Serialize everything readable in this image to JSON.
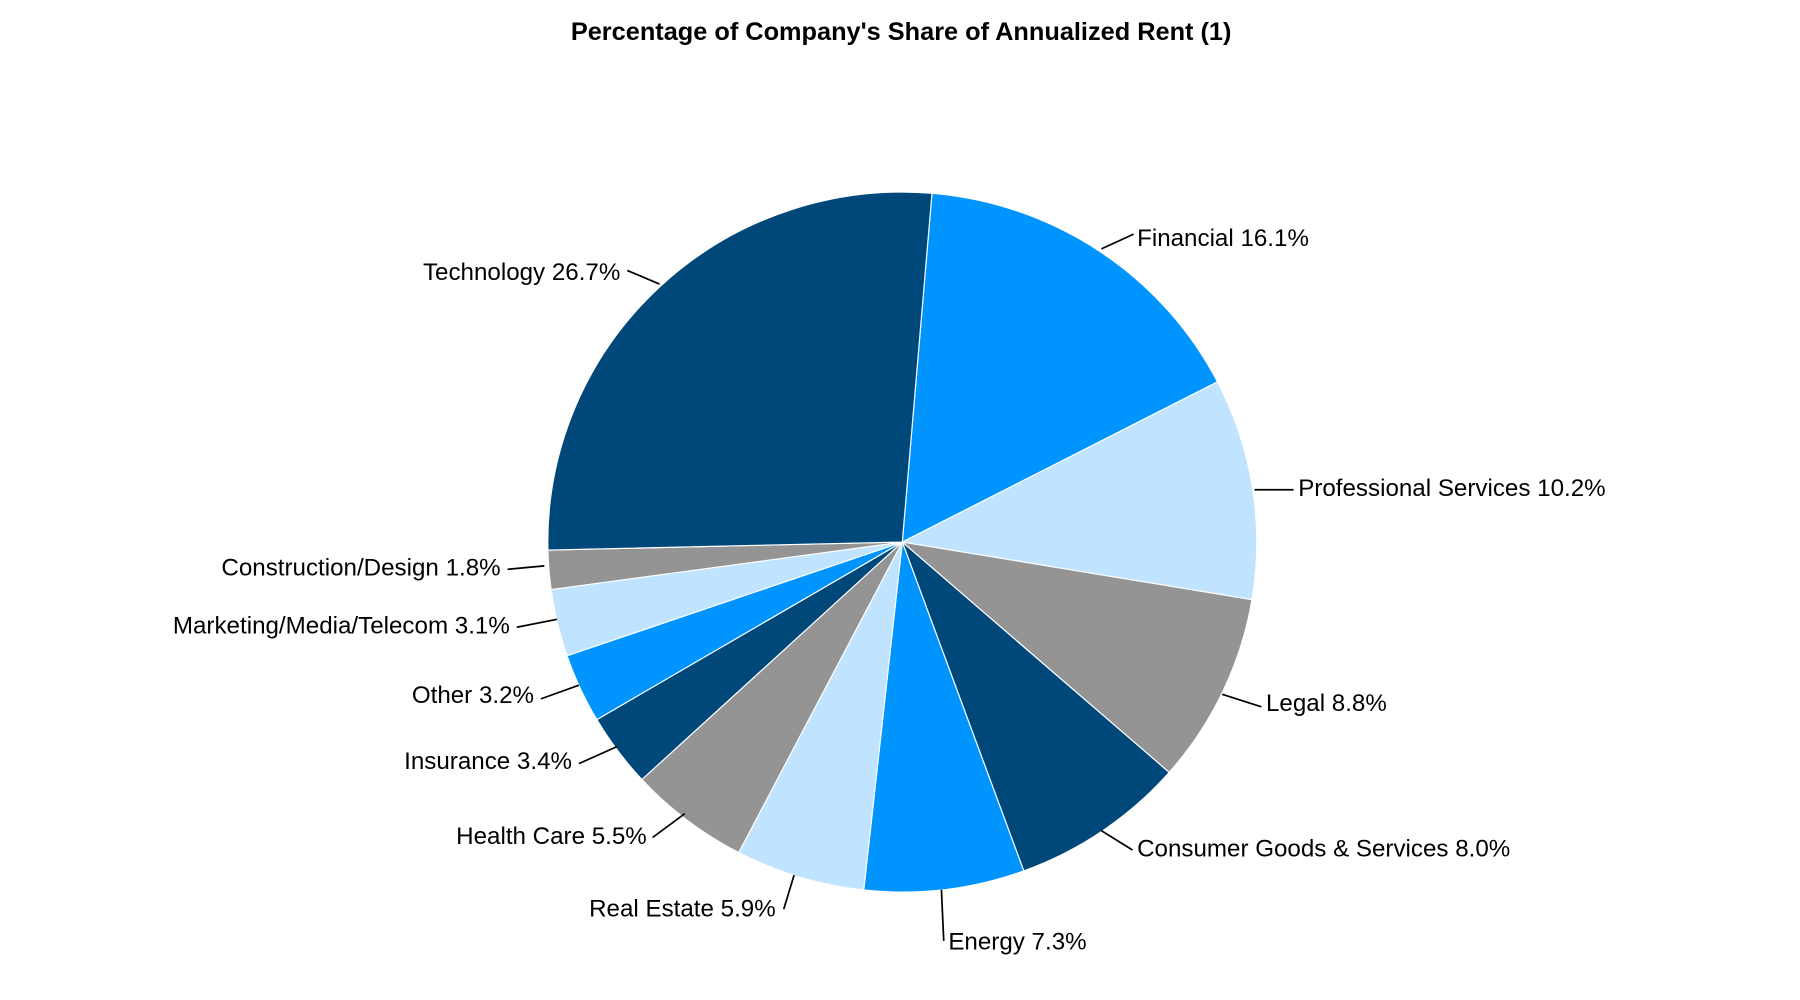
{
  "chart_data": {
    "type": "pie",
    "title": "Percentage of Company's Share of Annualized Rent (1)",
    "unit": "%",
    "slices": [
      {
        "label": "Financial",
        "value": 16.1,
        "text": "Financial 16.1%",
        "color": "#0094FF"
      },
      {
        "label": "Professional Services",
        "value": 10.2,
        "text": "Professional Services 10.2%",
        "color": "#C0E4FF"
      },
      {
        "label": "Legal",
        "value": 8.8,
        "text": "Legal 8.8%",
        "color": "#949494"
      },
      {
        "label": "Consumer Goods & Services",
        "value": 8.0,
        "text": "Consumer Goods & Services 8.0%",
        "color": "#00487A"
      },
      {
        "label": "Energy",
        "value": 7.3,
        "text": "Energy 7.3%",
        "color": "#0094FF"
      },
      {
        "label": "Real Estate",
        "value": 5.9,
        "text": "Real Estate 5.9%",
        "color": "#C0E4FF"
      },
      {
        "label": "Health Care",
        "value": 5.5,
        "text": "Health Care 5.5%",
        "color": "#949494"
      },
      {
        "label": "Insurance",
        "value": 3.4,
        "text": "Insurance 3.4%",
        "color": "#00487A"
      },
      {
        "label": "Other",
        "value": 3.2,
        "text": "Other 3.2%",
        "color": "#0094FF"
      },
      {
        "label": "Marketing/Media/Telecom",
        "value": 3.1,
        "text": "Marketing/Media/Telecom 3.1%",
        "color": "#C0E4FF"
      },
      {
        "label": "Construction/Design",
        "value": 1.8,
        "text": "Construction/Design 1.8%",
        "color": "#949494"
      },
      {
        "label": "Technology",
        "value": 26.7,
        "text": "Technology 26.7%",
        "color": "#00487A"
      }
    ],
    "legend": "none",
    "data_labels": "outside with leader lines"
  }
}
